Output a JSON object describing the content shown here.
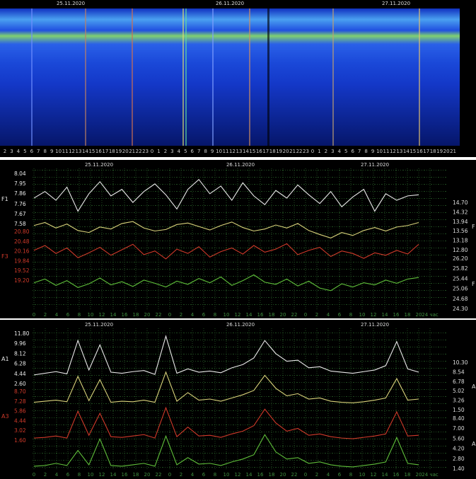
{
  "chart_data": [
    {
      "type": "spectrogram",
      "dates": [
        "25.11.2020",
        "26.11.2020",
        "27.11.2020"
      ],
      "categories": [
        "2",
        "3",
        "4",
        "5",
        "6",
        "7",
        "8",
        "9",
        "10",
        "11",
        "12",
        "13",
        "14",
        "15",
        "16",
        "17",
        "18",
        "19",
        "20",
        "21",
        "22",
        "23",
        "0",
        "1",
        "2",
        "3",
        "4",
        "5",
        "6",
        "7",
        "8",
        "9",
        "10",
        "11",
        "12",
        "13",
        "14",
        "15",
        "16",
        "17",
        "18",
        "19",
        "20",
        "21",
        "22",
        "23",
        "0",
        "1",
        "2",
        "3",
        "4",
        "5",
        "6",
        "7",
        "8",
        "9",
        "10",
        "11",
        "12",
        "13",
        "14",
        "15",
        "16",
        "17",
        "18",
        "19",
        "20",
        "21"
      ]
    },
    {
      "type": "line",
      "dates": [
        "25.11.2020",
        "26.11.2020",
        "27.11.2020"
      ],
      "categories": [
        "0",
        "2",
        "4",
        "6",
        "8",
        "10",
        "12",
        "14",
        "16",
        "18",
        "20",
        "22",
        "0",
        "2",
        "4",
        "6",
        "8",
        "10",
        "12",
        "14",
        "16",
        "18",
        "20",
        "22",
        "0",
        "2",
        "4",
        "6",
        "8",
        "10",
        "12",
        "14",
        "16",
        "18",
        "20",
        "24 час"
      ],
      "series": [
        {
          "name": "F1",
          "color": "#e8e8e8",
          "ylim": [
            7.58,
            8.04
          ],
          "yticks": [
            {
              "value": 8.04,
              "label": "8.04"
            },
            {
              "value": 7.95,
              "label": "7.95"
            },
            {
              "value": 7.86,
              "label": "7.86"
            },
            {
              "value": 7.76,
              "label": "7.76"
            },
            {
              "value": 7.67,
              "label": "7.67"
            },
            {
              "value": 7.58,
              "label": "7.58"
            }
          ],
          "values": [
            7.82,
            7.88,
            7.8,
            7.92,
            7.7,
            7.86,
            7.97,
            7.84,
            7.9,
            7.78,
            7.88,
            7.95,
            7.85,
            7.72,
            7.9,
            7.99,
            7.86,
            7.93,
            7.8,
            7.96,
            7.84,
            7.76,
            7.89,
            7.82,
            7.94,
            7.85,
            7.77,
            7.88,
            7.74,
            7.83,
            7.9,
            7.7,
            7.86,
            7.8,
            7.84,
            7.85
          ]
        },
        {
          "name": "F",
          "color": "#d8d27a",
          "ylim": [
            12.8,
            14.7
          ],
          "yticks": [
            {
              "value": 14.7,
              "label": "14.70"
            },
            {
              "value": 14.32,
              "label": "14.32"
            },
            {
              "value": 13.94,
              "label": "13.94"
            },
            {
              "value": 13.56,
              "label": "13.56"
            },
            {
              "value": 13.18,
              "label": "13.18"
            },
            {
              "value": 12.8,
              "label": "12.80"
            }
          ],
          "values": [
            13.8,
            13.92,
            13.7,
            13.86,
            13.6,
            13.52,
            13.74,
            13.66,
            13.88,
            13.96,
            13.7,
            13.58,
            13.64,
            13.84,
            13.9,
            13.76,
            13.62,
            13.8,
            13.94,
            13.72,
            13.58,
            13.66,
            13.82,
            13.7,
            13.88,
            13.6,
            13.44,
            13.3,
            13.52,
            13.4,
            13.6,
            13.72,
            13.58,
            13.74,
            13.8,
            13.92
          ]
        },
        {
          "name": "F3",
          "color": "#d03a2a",
          "ylim": [
            19.2,
            20.8
          ],
          "yticks": [
            {
              "value": 20.8,
              "label": "20.80"
            },
            {
              "value": 20.48,
              "label": "20.48"
            },
            {
              "value": 20.16,
              "label": "20.16"
            },
            {
              "value": 19.84,
              "label": "19.84"
            },
            {
              "value": 19.52,
              "label": "19.52"
            },
            {
              "value": 19.2,
              "label": "19.20"
            }
          ],
          "values": [
            20.2,
            20.36,
            20.1,
            20.28,
            19.96,
            20.12,
            20.3,
            20.04,
            20.22,
            20.4,
            20.06,
            20.18,
            19.92,
            20.24,
            20.1,
            20.32,
            19.98,
            20.16,
            20.28,
            20.08,
            20.36,
            20.14,
            20.24,
            20.42,
            20.06,
            20.2,
            20.3,
            20.0,
            20.18,
            20.1,
            19.94,
            20.12,
            20.04,
            20.2,
            20.08,
            20.4
          ]
        },
        {
          "name": "F",
          "color": "#5fbf3a",
          "ylim": [
            24.3,
            26.2
          ],
          "yticks": [
            {
              "value": 26.2,
              "label": "26.20"
            },
            {
              "value": 25.82,
              "label": "25.82"
            },
            {
              "value": 25.44,
              "label": "25.44"
            },
            {
              "value": 25.06,
              "label": "25.06"
            },
            {
              "value": 24.68,
              "label": "24.68"
            },
            {
              "value": 24.3,
              "label": "24.30"
            }
          ],
          "values": [
            25.3,
            25.44,
            25.2,
            25.38,
            25.12,
            25.26,
            25.48,
            25.22,
            25.34,
            25.16,
            25.4,
            25.28,
            25.14,
            25.36,
            25.24,
            25.46,
            25.3,
            25.52,
            25.2,
            25.38,
            25.6,
            25.32,
            25.24,
            25.44,
            25.18,
            25.36,
            25.1,
            25.0,
            25.26,
            25.14,
            25.3,
            25.22,
            25.4,
            25.28,
            25.44,
            25.5
          ]
        }
      ]
    },
    {
      "type": "line",
      "dates": [
        "25.11.2020",
        "26.11.2020",
        "27.11.2020"
      ],
      "categories": [
        "0",
        "2",
        "4",
        "6",
        "8",
        "10",
        "12",
        "14",
        "16",
        "18",
        "20",
        "22",
        "0",
        "2",
        "4",
        "6",
        "8",
        "10",
        "12",
        "14",
        "16",
        "18",
        "20",
        "22",
        "0",
        "2",
        "4",
        "6",
        "8",
        "10",
        "12",
        "14",
        "16",
        "18",
        "20",
        "24 час"
      ],
      "series": [
        {
          "name": "A1",
          "color": "#e8e8e8",
          "ylim": [
            2.6,
            11.8
          ],
          "yticks": [
            {
              "value": 11.8,
              "label": "11.80"
            },
            {
              "value": 9.96,
              "label": "9.96"
            },
            {
              "value": 8.12,
              "label": "8.12"
            },
            {
              "value": 6.28,
              "label": "6.28"
            },
            {
              "value": 4.44,
              "label": "4.44"
            },
            {
              "value": 2.6,
              "label": "2.60"
            }
          ],
          "values": [
            4.3,
            4.6,
            4.9,
            4.5,
            10.6,
            5.2,
            9.8,
            4.8,
            4.6,
            4.9,
            5.1,
            4.4,
            11.4,
            4.6,
            5.4,
            4.8,
            5.0,
            4.7,
            5.6,
            6.2,
            7.4,
            10.6,
            8.2,
            6.8,
            7.0,
            5.6,
            5.8,
            5.0,
            4.8,
            4.6,
            4.9,
            5.2,
            6.0,
            10.4,
            5.4,
            4.8
          ]
        },
        {
          "name": "A",
          "color": "#d8d27a",
          "ylim": [
            1.5,
            10.3
          ],
          "yticks": [
            {
              "value": 10.3,
              "label": "10.30"
            },
            {
              "value": 8.54,
              "label": "8.54"
            },
            {
              "value": 6.78,
              "label": "6.78"
            },
            {
              "value": 5.02,
              "label": "5.02"
            },
            {
              "value": 3.26,
              "label": "3.26"
            },
            {
              "value": 1.5,
              "label": "1.50"
            }
          ],
          "values": [
            3.0,
            3.2,
            3.4,
            3.1,
            7.8,
            3.3,
            7.2,
            3.0,
            3.2,
            3.1,
            3.4,
            3.0,
            8.6,
            3.2,
            4.8,
            3.4,
            3.6,
            3.2,
            3.8,
            4.4,
            5.2,
            8.0,
            5.6,
            4.2,
            4.6,
            3.6,
            3.8,
            3.2,
            3.0,
            2.9,
            3.1,
            3.4,
            3.8,
            7.4,
            3.4,
            3.6
          ]
        },
        {
          "name": "A3",
          "color": "#d03a2a",
          "ylim": [
            1.6,
            8.7
          ],
          "yticks": [
            {
              "value": 8.7,
              "label": "8.70"
            },
            {
              "value": 7.28,
              "label": "7.28"
            },
            {
              "value": 5.86,
              "label": "5.86"
            },
            {
              "value": 4.44,
              "label": "4.44"
            },
            {
              "value": 3.02,
              "label": "3.02"
            },
            {
              "value": 1.6,
              "label": "1.60"
            }
          ],
          "values": [
            2.0,
            2.1,
            2.3,
            2.0,
            5.9,
            2.4,
            5.6,
            2.2,
            2.1,
            2.3,
            2.5,
            2.0,
            6.4,
            2.2,
            3.6,
            2.3,
            2.4,
            2.1,
            2.6,
            3.0,
            3.8,
            6.2,
            4.2,
            3.0,
            3.4,
            2.4,
            2.6,
            2.2,
            2.0,
            1.9,
            2.1,
            2.3,
            2.6,
            5.8,
            2.3,
            2.4
          ]
        },
        {
          "name": "A",
          "color": "#5fbf3a",
          "ylim": [
            1.4,
            8.4
          ],
          "yticks": [
            {
              "value": 8.4,
              "label": "8.40"
            },
            {
              "value": 7,
              "label": "7.00"
            },
            {
              "value": 5.6,
              "label": "5.60"
            },
            {
              "value": 4.2,
              "label": "4.20"
            },
            {
              "value": 2.8,
              "label": "2.80"
            },
            {
              "value": 1.4,
              "label": "1.40"
            }
          ],
          "values": [
            1.8,
            1.9,
            2.2,
            1.9,
            4.0,
            2.0,
            5.6,
            1.9,
            1.8,
            2.0,
            2.2,
            1.8,
            6.0,
            2.0,
            3.0,
            2.1,
            2.2,
            1.9,
            2.4,
            2.8,
            3.4,
            6.2,
            3.8,
            2.8,
            3.0,
            2.2,
            2.4,
            2.0,
            1.8,
            1.7,
            1.9,
            2.1,
            2.4,
            5.8,
            2.2,
            2.0
          ]
        }
      ]
    }
  ]
}
